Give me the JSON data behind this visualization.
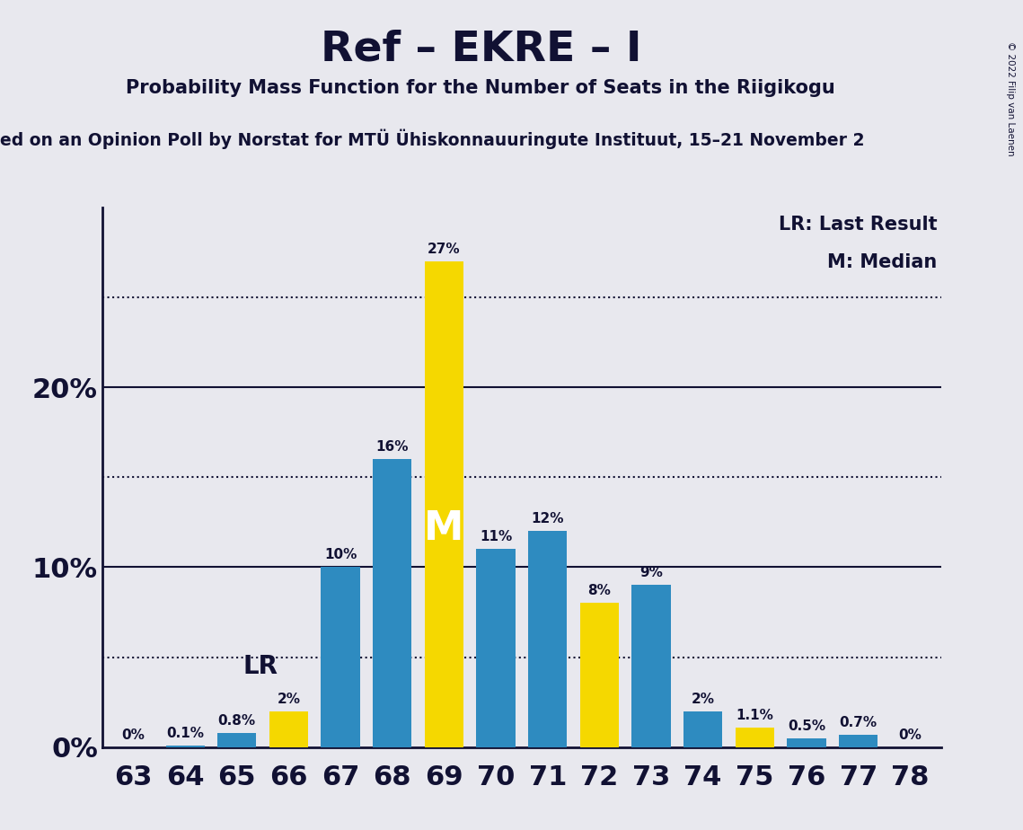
{
  "seats": [
    63,
    64,
    65,
    66,
    67,
    68,
    69,
    70,
    71,
    72,
    73,
    74,
    75,
    76,
    77,
    78
  ],
  "values": [
    0.0,
    0.1,
    0.8,
    2.0,
    10.0,
    16.0,
    27.0,
    11.0,
    12.0,
    8.0,
    9.0,
    2.0,
    1.1,
    0.5,
    0.7,
    0.0
  ],
  "colors": [
    "#2e8bc0",
    "#2e8bc0",
    "#2e8bc0",
    "#f5d800",
    "#2e8bc0",
    "#2e8bc0",
    "#f5d800",
    "#2e8bc0",
    "#2e8bc0",
    "#f5d800",
    "#2e8bc0",
    "#2e8bc0",
    "#f5d800",
    "#2e8bc0",
    "#2e8bc0",
    "#2e8bc0"
  ],
  "bar_labels": [
    "0%",
    "0.1%",
    "0.8%",
    "2%",
    "10%",
    "16%",
    "27%",
    "11%",
    "12%",
    "8%",
    "9%",
    "2%",
    "1.1%",
    "0.5%",
    "0.7%",
    "0%"
  ],
  "median_seat": 69,
  "lr_seat": 66,
  "title": "Ref – EKRE – I",
  "subtitle": "Probability Mass Function for the Number of Seats in the Riigikogu",
  "source_line": "ed on an Opinion Poll by Norstat for MTÜ Ühiskonnauuringute Instituut, 15–21 November 2",
  "copyright": "© 2022 Filip van Laenen",
  "legend_lr": "LR: Last Result",
  "legend_m": "M: Median",
  "yticks": [
    0,
    10,
    20
  ],
  "dotted_lines": [
    5,
    15,
    25
  ],
  "ylim": [
    0,
    30
  ],
  "bg_color": "#e8e8ee",
  "bar_color_blue": "#2e8bc0",
  "bar_color_yellow": "#f5d800",
  "axis_color": "#111133"
}
